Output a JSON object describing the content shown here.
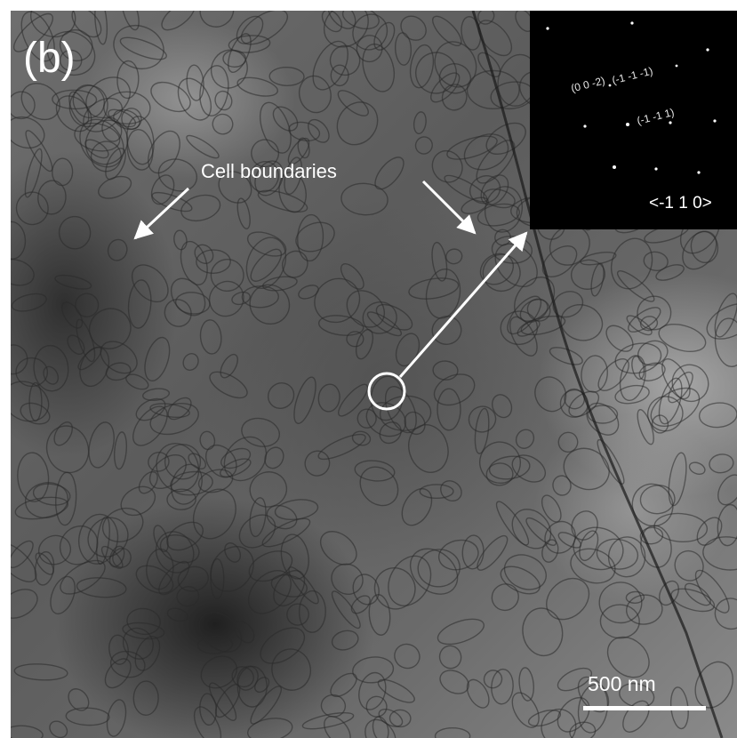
{
  "panel_label": "(b)",
  "annotation": "Cell boundaries",
  "scale_bar": "500 nm",
  "inset": {
    "spot_1": "(0 0 -2)",
    "spot_2": "(-1 -1 -1)",
    "spot_3": "(-1 -1 1)",
    "zone_axis": "<-1 1 0>"
  },
  "colors": {
    "annotation": "#ffffff",
    "inset_background": "#000000"
  }
}
